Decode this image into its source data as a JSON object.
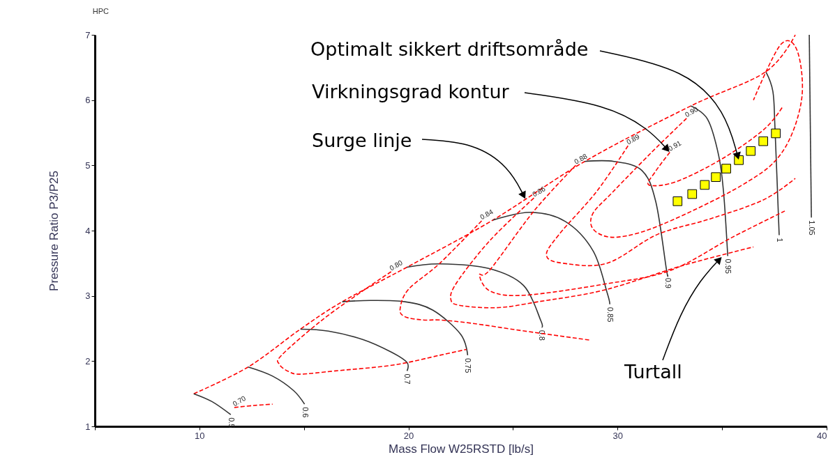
{
  "chart_data": {
    "type": "line",
    "title": "HPC",
    "xlabel": "Mass Flow W25RSTD [lb/s]",
    "ylabel": "Pressure Ratio P3/P25",
    "xlim": [
      5,
      40
    ],
    "ylim": [
      1,
      7
    ],
    "xticks": [
      {
        "value": 5,
        "label": null
      },
      10,
      {
        "value": 15,
        "label": null
      },
      20,
      {
        "value": 25,
        "label": null
      },
      30,
      {
        "value": 35,
        "label": null
      },
      40
    ],
    "yticks": [
      1,
      2,
      3,
      4,
      5,
      6,
      7
    ],
    "grid": false,
    "annotations": [
      {
        "text": "Optimalt sikkert driftsområde",
        "x": 35.8,
        "y": 5.08
      },
      {
        "text": "Virkningsgrad kontur",
        "x": 32.5,
        "y": 5.2
      },
      {
        "text": "Surge linje",
        "x": 25.6,
        "y": 4.48
      },
      {
        "text": "Turtall",
        "x": 35.0,
        "y": 3.6
      }
    ],
    "series": [
      {
        "color": "#ff0000",
        "line_style": "dashed",
        "x": [
          9.73,
          12.33,
          14.83,
          16.83,
          19.93,
          24.03,
          28.43,
          33.5,
          37.07,
          38.5
        ],
        "values": [
          1.5,
          1.91,
          2.49,
          2.91,
          3.44,
          4.16,
          5.06,
          5.91,
          6.43,
          7.0
        ]
      },
      {
        "type": "line",
        "name": "0.5",
        "color": "#333333",
        "line_style": "solid",
        "x": [
          9.73,
          10.6,
          11.5
        ],
        "values": [
          1.5,
          1.38,
          1.18
        ]
      },
      {
        "type": "line",
        "name": "0.6",
        "color": "#333333",
        "line_style": "solid",
        "x": [
          12.33,
          13.5,
          14.5,
          15.03
        ],
        "values": [
          1.91,
          1.77,
          1.55,
          1.34
        ]
      },
      {
        "type": "line",
        "name": "0.7",
        "color": "#333333",
        "line_style": "solid",
        "x": [
          14.83,
          16.17,
          17.83,
          19.17,
          19.93,
          19.93
        ],
        "values": [
          2.49,
          2.46,
          2.33,
          2.14,
          1.98,
          1.85
        ]
      },
      {
        "type": "line",
        "name": "0.75",
        "color": "#333333",
        "line_style": "solid",
        "x": [
          16.83,
          18.17,
          19.83,
          21.17,
          22.5,
          22.83
        ],
        "values": [
          2.91,
          2.93,
          2.91,
          2.78,
          2.41,
          2.09
        ]
      },
      {
        "type": "line",
        "name": "0.8",
        "color": "#333333",
        "line_style": "solid",
        "x": [
          19.93,
          21.5,
          23.83,
          25.5,
          26.33,
          26.37
        ],
        "values": [
          3.44,
          3.49,
          3.42,
          3.16,
          2.62,
          2.52
        ]
      },
      {
        "type": "line",
        "name": "0.85",
        "color": "#333333",
        "line_style": "solid",
        "x": [
          24.03,
          25.83,
          27.5,
          28.83,
          29.5,
          29.63
        ],
        "values": [
          4.16,
          4.28,
          4.14,
          3.69,
          3.05,
          2.87
        ]
      },
      {
        "type": "line",
        "name": "0.9",
        "color": "#333333",
        "line_style": "solid",
        "x": [
          28.43,
          29.83,
          31.17,
          31.83,
          32.33,
          32.4
        ],
        "values": [
          5.06,
          5.06,
          4.92,
          4.44,
          3.42,
          3.32
        ]
      },
      {
        "type": "line",
        "name": "0.95",
        "color": "#333333",
        "line_style": "solid",
        "x": [
          33.5,
          34.3,
          34.83,
          35.07,
          35.27
        ],
        "values": [
          5.91,
          5.71,
          5.16,
          4.59,
          3.61
        ]
      },
      {
        "type": "line",
        "name": "1",
        "color": "#333333",
        "line_style": "solid",
        "x": [
          37.1,
          37.43,
          37.53,
          37.73
        ],
        "values": [
          6.43,
          6.13,
          5.57,
          3.93
        ]
      },
      {
        "type": "line",
        "name": "1.05",
        "color": "#333333",
        "line_style": "solid",
        "x": [
          39.17,
          39.27
        ],
        "values": [
          7.0,
          4.2
        ]
      },
      {
        "type": "line",
        "name": "0.70",
        "color": "#ff0000",
        "line_style": "dashed",
        "x": [
          11.67,
          12.6,
          13.5
        ],
        "values": [
          1.29,
          1.32,
          1.34
        ]
      },
      {
        "type": "line",
        "name": "0.80",
        "color": "#ff0000",
        "line_style": "dashed",
        "x": [
          19.17,
          17.83,
          15.83,
          13.93,
          13.83,
          14.27,
          14.83,
          16.5,
          19.27,
          21.5,
          22.77
        ],
        "values": [
          3.37,
          3.08,
          2.62,
          2.09,
          1.95,
          1.84,
          1.8,
          1.85,
          1.94,
          2.09,
          2.18
        ]
      },
      {
        "type": "line",
        "name": "0.84",
        "color": "#ff0000",
        "line_style": "dashed",
        "x": [
          23.5,
          21.5,
          20.0,
          19.6,
          19.83,
          20.7,
          21.5,
          23.03,
          25.57,
          28.73
        ],
        "values": [
          4.15,
          3.5,
          3.1,
          2.8,
          2.68,
          2.63,
          2.63,
          2.58,
          2.46,
          2.32
        ]
      },
      {
        "type": "line",
        "name": "0.86",
        "color": "#ff0000",
        "line_style": "dashed",
        "x": [
          26.0,
          23.9,
          22.3,
          22.03,
          22.53,
          24.3,
          26.2,
          29.37,
          33.17,
          36.5
        ],
        "values": [
          4.5,
          3.85,
          3.2,
          2.94,
          2.85,
          2.82,
          2.91,
          3.09,
          3.47,
          3.75
        ]
      },
      {
        "type": "line",
        "name": "0.88",
        "color": "#ff0000",
        "line_style": "dashed",
        "x": [
          28.0,
          26.0,
          23.9,
          23.4,
          23.93,
          25.57,
          29.37,
          32.53,
          35.5,
          38.0
        ],
        "values": [
          5.0,
          4.3,
          3.4,
          3.32,
          3.07,
          3.01,
          3.18,
          3.39,
          3.9,
          4.3
        ]
      },
      {
        "type": "line",
        "name": "0.89",
        "color": "#ff0000",
        "line_style": "dashed",
        "x": [
          30.5,
          29.0,
          27.2,
          26.6,
          27.4,
          29.5,
          31.9,
          34.43,
          36.97,
          38.5
        ],
        "values": [
          5.3,
          4.6,
          3.94,
          3.62,
          3.5,
          3.5,
          3.94,
          4.18,
          4.47,
          4.8
        ]
      },
      {
        "type": "line",
        "name": "0.90",
        "color": "#ff0000",
        "line_style": "dashed",
        "x": [
          33.3,
          31.63,
          29.8,
          28.8,
          28.9,
          30.0,
          32.17,
          35.97,
          37.87,
          38.8,
          38.6,
          37.8,
          36.5
        ],
        "values": [
          5.72,
          5.2,
          4.6,
          4.25,
          4.0,
          3.9,
          4.1,
          4.7,
          5.2,
          6.0,
          6.75,
          6.85,
          6.0
        ]
      },
      {
        "type": "line",
        "name": "0.91",
        "color": "#ff0000",
        "line_style": "dashed",
        "x": [
          32.5,
          31.8,
          31.5,
          32.8,
          35.0,
          37.0,
          37.9
        ],
        "values": [
          5.2,
          4.9,
          4.7,
          4.75,
          5.1,
          5.55,
          5.9
        ]
      },
      {
        "type": "scatter",
        "color": "#ffff00",
        "marker": "square",
        "x": [
          32.87,
          33.57,
          34.17,
          34.7,
          35.2,
          35.8,
          36.37,
          36.97,
          37.57
        ],
        "values": [
          4.45,
          4.56,
          4.7,
          4.82,
          4.95,
          5.08,
          5.22,
          5.37,
          5.49
        ]
      }
    ]
  }
}
